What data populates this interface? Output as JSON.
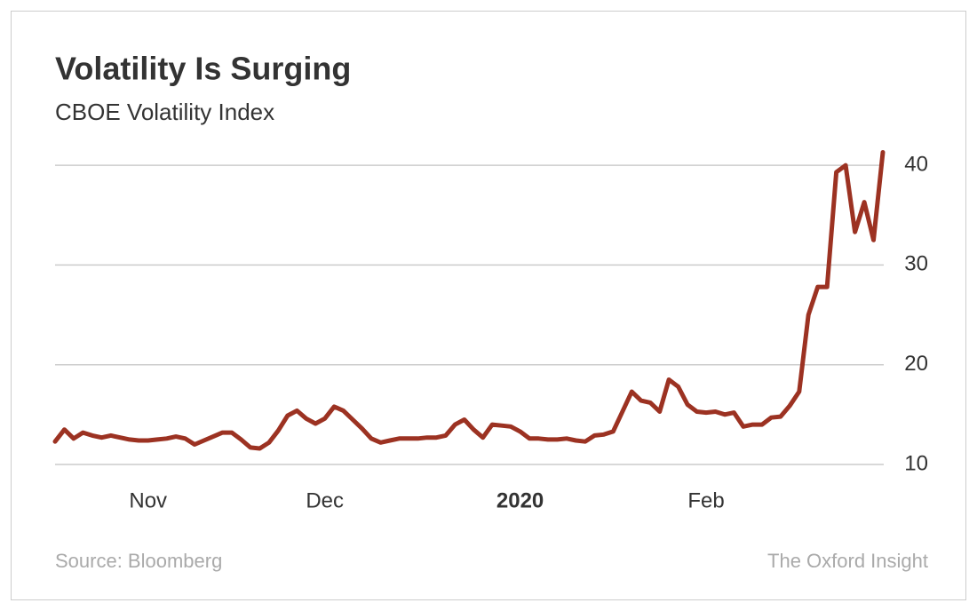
{
  "chart_data": {
    "type": "line",
    "title": "Volatility Is Surging",
    "subtitle": "CBOE Volatility Index",
    "source": "Source: Bloomberg",
    "credit": "The Oxford Insight",
    "categories": [
      null,
      null,
      null,
      null,
      null,
      null,
      null,
      null,
      null,
      null,
      "Nov",
      null,
      null,
      null,
      null,
      null,
      null,
      null,
      null,
      null,
      null,
      null,
      null,
      null,
      null,
      null,
      null,
      null,
      null,
      "Dec",
      null,
      null,
      null,
      null,
      null,
      null,
      null,
      null,
      null,
      null,
      null,
      null,
      null,
      null,
      null,
      null,
      null,
      null,
      null,
      null,
      "2020",
      null,
      null,
      null,
      null,
      null,
      null,
      null,
      null,
      null,
      null,
      null,
      null,
      null,
      null,
      null,
      null,
      null,
      null,
      null,
      "Feb",
      null,
      null,
      null,
      null,
      null,
      null,
      null,
      null,
      null,
      null,
      null,
      null,
      null,
      null,
      null,
      null,
      null,
      null,
      null
    ],
    "series": [
      {
        "name": "CBOE Volatility Index",
        "color": "#9c3222",
        "values": [
          12.3,
          13.5,
          12.6,
          13.2,
          12.9,
          12.7,
          12.9,
          12.7,
          12.5,
          12.4,
          12.4,
          12.5,
          12.6,
          12.8,
          12.6,
          12.0,
          12.4,
          12.8,
          13.2,
          13.2,
          12.5,
          11.7,
          11.6,
          12.2,
          13.4,
          14.9,
          15.4,
          14.6,
          14.1,
          14.6,
          15.8,
          15.4,
          14.5,
          13.6,
          12.6,
          12.2,
          12.4,
          12.6,
          12.6,
          12.6,
          12.7,
          12.7,
          12.9,
          14.0,
          14.5,
          13.5,
          12.7,
          14.0,
          13.9,
          13.8,
          13.3,
          12.6,
          12.6,
          12.5,
          12.5,
          12.6,
          12.4,
          12.3,
          12.9,
          13.0,
          13.3,
          15.3,
          17.3,
          16.4,
          16.2,
          15.3,
          18.5,
          17.8,
          16.0,
          15.3,
          15.2,
          15.3,
          15.0,
          15.2,
          13.8,
          14.0,
          14.0,
          14.7,
          14.8,
          15.9,
          17.3,
          25.0,
          27.8,
          27.8,
          39.3,
          40.0,
          33.3,
          36.3,
          32.5,
          41.3
        ]
      }
    ],
    "ylim": [
      10,
      42
    ],
    "yticks": [
      10,
      20,
      30,
      40
    ],
    "grid": true
  }
}
